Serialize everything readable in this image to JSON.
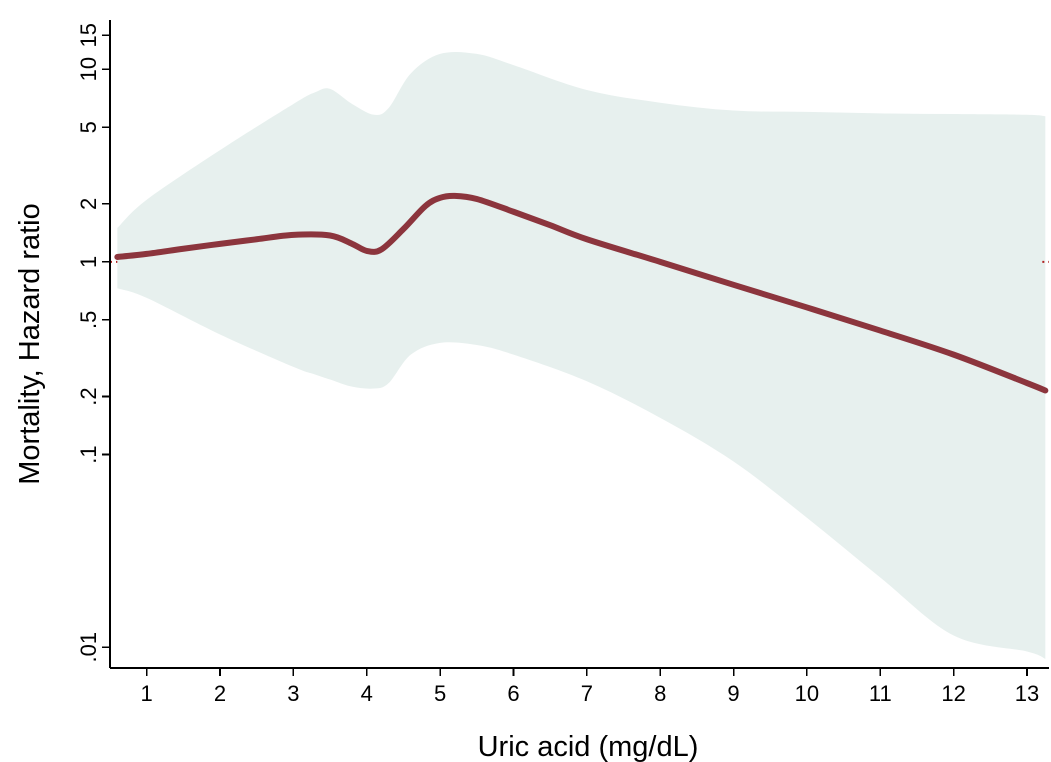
{
  "chart_data": {
    "type": "line",
    "title": "",
    "xlabel": "Uric acid (mg/dL)",
    "ylabel": "Mortality, Hazard ratio",
    "y_scale": "log",
    "grid": false,
    "xlim": [
      0.5,
      13.3
    ],
    "ylim": [
      0.0078,
      18
    ],
    "x_ticks": [
      1,
      2,
      3,
      4,
      5,
      6,
      7,
      8,
      9,
      10,
      11,
      12,
      13
    ],
    "x_tick_labels": [
      "1",
      "2",
      "3",
      "4",
      "5",
      "6",
      "7",
      "8",
      "9",
      "10",
      "11",
      "12",
      "13"
    ],
    "y_ticks": [
      0.01,
      0.1,
      0.2,
      0.5,
      1,
      2,
      5,
      10,
      15
    ],
    "y_tick_labels": [
      ".01",
      ".1",
      ".2",
      ".5",
      "1",
      "2",
      "5",
      "10",
      "15"
    ],
    "reference_line": {
      "y": 1,
      "style": "dotted"
    },
    "series": [
      {
        "name": "",
        "role": "estimate",
        "x": [
          0.6,
          1.0,
          1.5,
          2.0,
          2.5,
          3.0,
          3.5,
          3.8,
          4.0,
          4.2,
          4.5,
          4.8,
          5.0,
          5.2,
          5.5,
          6.0,
          6.5,
          7.0,
          8.0,
          9.0,
          10.0,
          11.0,
          12.0,
          13.0,
          13.25
        ],
        "values": [
          1.06,
          1.1,
          1.17,
          1.24,
          1.31,
          1.38,
          1.37,
          1.24,
          1.14,
          1.16,
          1.48,
          1.95,
          2.15,
          2.2,
          2.12,
          1.82,
          1.55,
          1.31,
          1.0,
          0.76,
          0.58,
          0.44,
          0.33,
          0.235,
          0.215
        ],
        "color": "#8c353d"
      },
      {
        "name": "",
        "role": "confidence-band",
        "x": [
          0.6,
          1.0,
          2.0,
          3.0,
          3.3,
          3.5,
          3.8,
          4.1,
          4.3,
          4.6,
          5.0,
          5.5,
          6.0,
          7.0,
          8.0,
          9.0,
          10.0,
          11.0,
          12.0,
          13.0,
          13.25
        ],
        "lower": [
          0.73,
          0.65,
          0.42,
          0.285,
          0.26,
          0.245,
          0.225,
          0.22,
          0.235,
          0.33,
          0.38,
          0.37,
          0.33,
          0.24,
          0.155,
          0.092,
          0.047,
          0.023,
          0.0115,
          0.0095,
          0.0087
        ],
        "upper": [
          1.5,
          2.1,
          3.8,
          6.6,
          7.6,
          7.9,
          6.6,
          5.8,
          6.3,
          9.5,
          12.0,
          12.0,
          10.5,
          7.8,
          6.7,
          6.1,
          6.0,
          5.9,
          5.85,
          5.8,
          5.7
        ],
        "color": "#e7f0ee"
      }
    ]
  }
}
